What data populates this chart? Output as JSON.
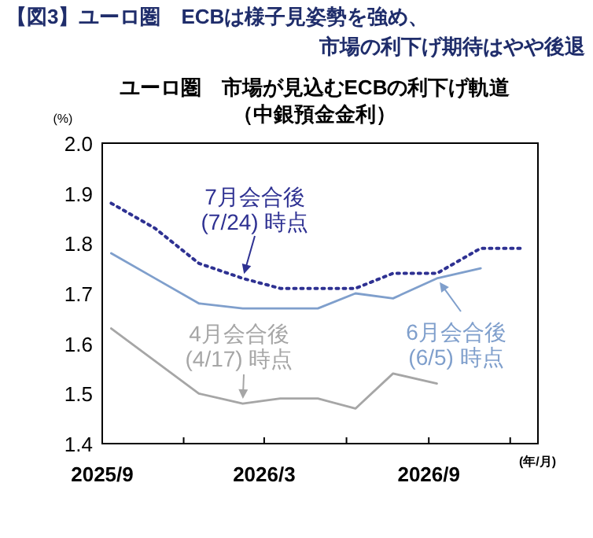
{
  "chart_data": {
    "type": "line",
    "title": "【図3】ユーロ圏　ECBは様子見姿勢を強め、市場の利下げ期待はやや後退",
    "subtitle": "ユーロ圏　市場が見込むECBの利下げ軌道（中銀預金金利）",
    "ylabel": "(%)",
    "xlabel": "(年/月)",
    "xlim": [
      "2025-09-01",
      "2027-01-01"
    ],
    "xticks": [
      {
        "value": "2025-09-01",
        "label": "2025/9"
      },
      {
        "value": "2025-12-01",
        "label": null
      },
      {
        "value": "2026-03-01",
        "label": "2026/3"
      },
      {
        "value": "2026-06-01",
        "label": null
      },
      {
        "value": "2026-09-01",
        "label": "2026/9"
      },
      {
        "value": "2026-12-01",
        "label": null
      }
    ],
    "ylim": [
      1.4,
      2.0
    ],
    "yticks": [
      {
        "value": 1.4,
        "label": "1.4"
      },
      {
        "value": 1.5,
        "label": "1.5"
      },
      {
        "value": 1.6,
        "label": "1.6"
      },
      {
        "value": 1.7,
        "label": "1.7"
      },
      {
        "value": 1.8,
        "label": "1.8"
      },
      {
        "value": 1.9,
        "label": "1.9"
      },
      {
        "value": 2.0,
        "label": "2.0"
      }
    ],
    "grid": false,
    "series": [
      {
        "name": "4月会合後 (4/17) 時点",
        "color": "#a6a6a6",
        "line_style": "solid",
        "x": [
          "2025-09-11",
          "2025-12-18",
          "2026-02-05",
          "2026-03-19",
          "2026-04-30",
          "2026-06-11",
          "2026-07-23",
          "2026-09-10"
        ],
        "values": [
          1.63,
          1.5,
          1.48,
          1.49,
          1.49,
          1.47,
          1.54,
          1.52
        ]
      },
      {
        "name": "6月会合後 (6/5) 時点",
        "color": "#7f9fcc",
        "line_style": "solid",
        "x": [
          "2025-09-11",
          "2025-10-30",
          "2025-12-18",
          "2026-02-05",
          "2026-03-19",
          "2026-04-30",
          "2026-06-11",
          "2026-07-23",
          "2026-09-10",
          "2026-10-29"
        ],
        "values": [
          1.78,
          1.73,
          1.68,
          1.67,
          1.67,
          1.67,
          1.7,
          1.69,
          1.73,
          1.75
        ]
      },
      {
        "name": "7月会合後 (7/24) 時点",
        "color": "#2e3192",
        "line_style": "dotted",
        "x": [
          "2025-09-11",
          "2025-10-30",
          "2025-12-18",
          "2026-02-05",
          "2026-03-19",
          "2026-04-30",
          "2026-06-11",
          "2026-07-23",
          "2026-09-10",
          "2026-10-29",
          "2026-12-17"
        ],
        "values": [
          1.88,
          1.83,
          1.76,
          1.73,
          1.71,
          1.71,
          1.71,
          1.74,
          1.74,
          1.79,
          1.79
        ]
      }
    ]
  }
}
